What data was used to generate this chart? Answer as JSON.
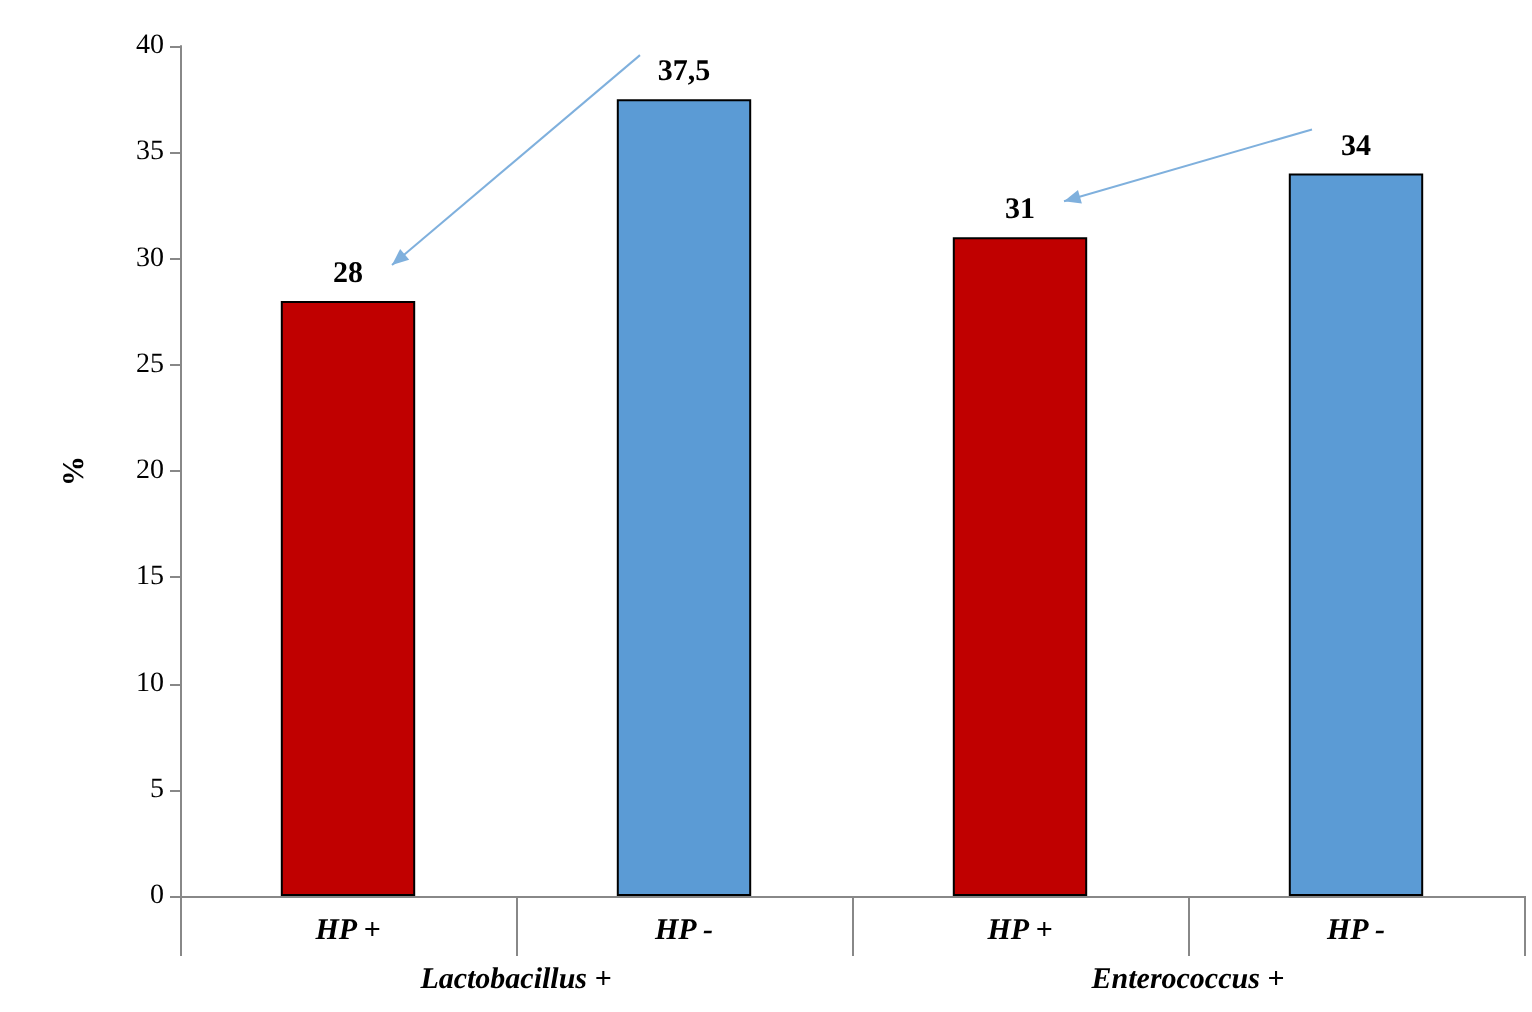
{
  "chart_data": {
    "type": "bar",
    "ylabel": "%",
    "categories": [
      "HP +",
      "HP -",
      "HP +",
      "HP -"
    ],
    "values": [
      28,
      37.5,
      31,
      34
    ],
    "colors": [
      "#c00000",
      "#5b9bd5",
      "#c00000",
      "#5b9bd5"
    ],
    "value_labels": [
      "28",
      "37,5",
      "31",
      "34"
    ],
    "annotations": [
      "Lactobacillus +",
      "Enterococcus +"
    ],
    "ylim": [
      0,
      40
    ],
    "yticks": [
      0,
      5,
      10,
      15,
      20,
      25,
      30,
      35,
      40
    ],
    "grid": false
  }
}
